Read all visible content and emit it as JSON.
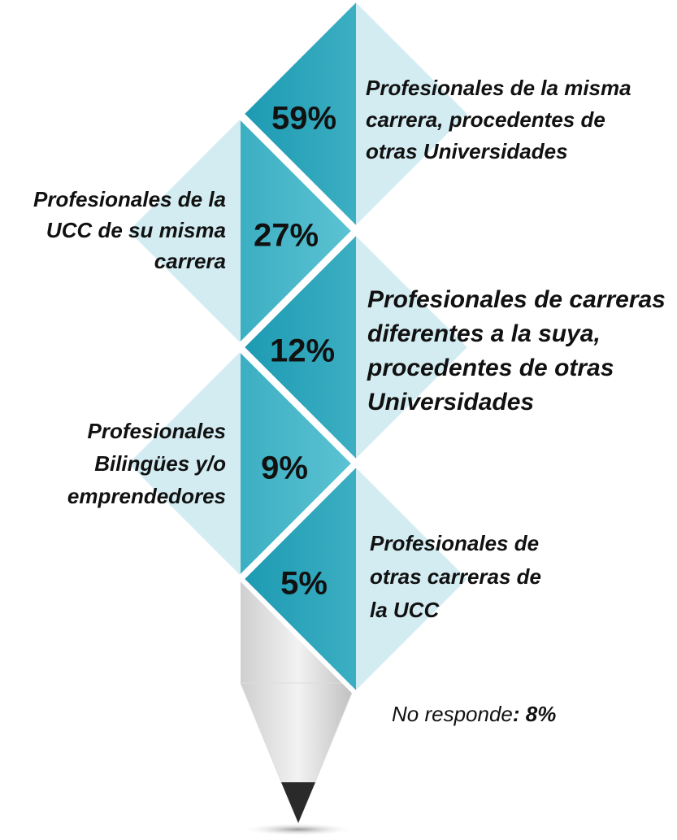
{
  "items": [
    {
      "label": "59%",
      "text": [
        "Profesionales de la misma",
        "carrera, procedentes de",
        "otras Universidades"
      ]
    },
    {
      "label": "27%",
      "text": [
        "Profesionales de la",
        "UCC de su misma",
        "carrera"
      ]
    },
    {
      "label": "12%",
      "text": [
        "Profesionales de carreras",
        "diferentes a la suya,",
        "procedentes de otras",
        "Universidades"
      ]
    },
    {
      "label": "9%",
      "text": [
        "Profesionales",
        "Bilingües y/o",
        "emprendedores"
      ]
    },
    {
      "label": "5%",
      "text": [
        "Profesionales de",
        "otras carreras de",
        "la UCC"
      ]
    }
  ],
  "note": {
    "text": "No responde",
    "value": ": 8%"
  }
}
